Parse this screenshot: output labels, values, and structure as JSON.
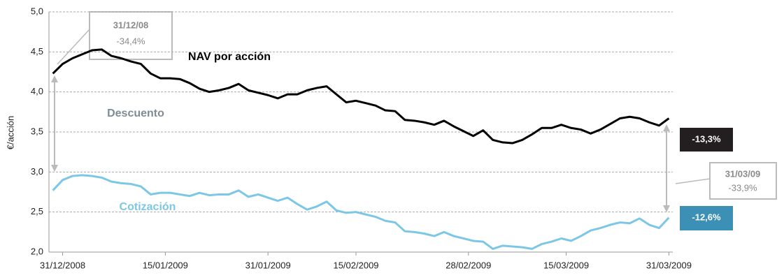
{
  "chart_data": {
    "type": "line",
    "y_label": "€/acción",
    "x": [
      0,
      1,
      2,
      3,
      4,
      5,
      6,
      7,
      8,
      9,
      10,
      11,
      12,
      13,
      14,
      15,
      16,
      17,
      18,
      19,
      20,
      21,
      22,
      23,
      24,
      25,
      26,
      27,
      28,
      29,
      30,
      31,
      32,
      33,
      34,
      35,
      36,
      37,
      38,
      39,
      40,
      41,
      42,
      43,
      44,
      45,
      46,
      47,
      48,
      49,
      50,
      51,
      52,
      53,
      54,
      55,
      56,
      57,
      58,
      59,
      60,
      61,
      62,
      63
    ],
    "xlim": [
      -0.4,
      63.4
    ],
    "xticks": [
      {
        "value": 1,
        "label": "31/12/2008"
      },
      {
        "value": 11.5,
        "label": "15/01/2009"
      },
      {
        "value": 22,
        "label": "31/01/2009"
      },
      {
        "value": 31,
        "label": "15/02/2009"
      },
      {
        "value": 42.5,
        "label": "28/02/2009"
      },
      {
        "value": 52.5,
        "label": "15/03/2009"
      },
      {
        "value": 63,
        "label": "31/03/2009"
      }
    ],
    "ylim": [
      2,
      5
    ],
    "yticks": [
      {
        "value": 2,
        "label": "2,0"
      },
      {
        "value": 2.5,
        "label": "2,5"
      },
      {
        "value": 3,
        "label": "3,0"
      },
      {
        "value": 3.5,
        "label": "3,5"
      },
      {
        "value": 4,
        "label": "4,0"
      },
      {
        "value": 4.5,
        "label": "4,5"
      },
      {
        "value": 5,
        "label": "5,0"
      }
    ],
    "grid": true,
    "series": [
      {
        "name": "NAV por acción",
        "color": "#000000",
        "values": [
          4.23,
          4.35,
          4.42,
          4.47,
          4.52,
          4.53,
          4.45,
          4.42,
          4.38,
          4.35,
          4.23,
          4.17,
          4.17,
          4.16,
          4.11,
          4.04,
          4.0,
          4.02,
          4.05,
          4.1,
          4.02,
          3.99,
          3.96,
          3.92,
          3.97,
          3.97,
          4.02,
          4.05,
          4.07,
          3.97,
          3.87,
          3.89,
          3.86,
          3.83,
          3.77,
          3.76,
          3.65,
          3.64,
          3.62,
          3.59,
          3.64,
          3.57,
          3.51,
          3.45,
          3.52,
          3.4,
          3.37,
          3.36,
          3.4,
          3.47,
          3.55,
          3.55,
          3.59,
          3.55,
          3.53,
          3.48,
          3.53,
          3.6,
          3.67,
          3.69,
          3.67,
          3.62,
          3.58,
          3.67
        ]
      },
      {
        "name": "Cotización",
        "color": "#7cc7e6",
        "values": [
          2.77,
          2.9,
          2.95,
          2.96,
          2.95,
          2.93,
          2.88,
          2.86,
          2.85,
          2.82,
          2.72,
          2.74,
          2.74,
          2.72,
          2.7,
          2.74,
          2.71,
          2.72,
          2.72,
          2.77,
          2.69,
          2.72,
          2.68,
          2.64,
          2.68,
          2.6,
          2.53,
          2.57,
          2.63,
          2.52,
          2.49,
          2.5,
          2.47,
          2.44,
          2.39,
          2.37,
          2.26,
          2.25,
          2.23,
          2.2,
          2.25,
          2.2,
          2.17,
          2.14,
          2.13,
          2.04,
          2.08,
          2.07,
          2.06,
          2.04,
          2.1,
          2.13,
          2.17,
          2.14,
          2.2,
          2.27,
          2.3,
          2.34,
          2.37,
          2.36,
          2.42,
          2.34,
          2.3,
          2.43
        ]
      }
    ],
    "annotations": {
      "start_date": "31/12/08",
      "start_discount": "-34,4%",
      "end_date": "31/03/09",
      "end_discount": "-33,9%",
      "discount_label": "Descuento",
      "nav_change": "-13,3%",
      "price_change": "-12,6%"
    }
  }
}
